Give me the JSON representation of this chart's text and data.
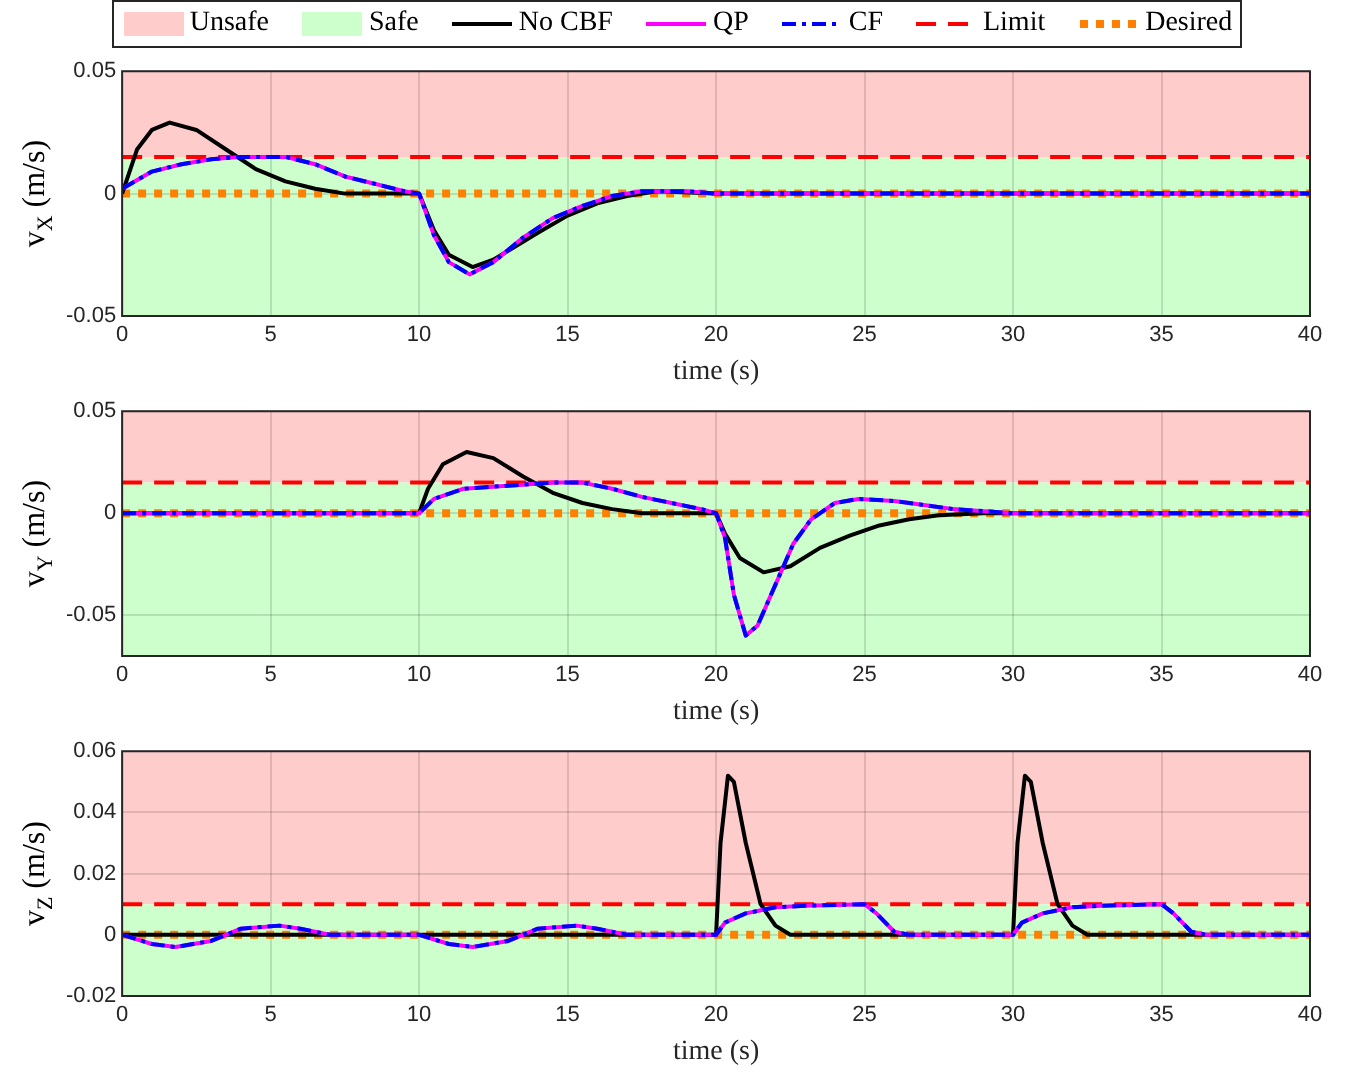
{
  "chart_data": [
    {
      "type": "line",
      "xlabel": "time (s)",
      "ylabel": "v$_{X}$ (m/s)",
      "xlim": [
        0,
        40
      ],
      "xticks": [
        0,
        5,
        10,
        15,
        20,
        25,
        30,
        35,
        40
      ],
      "ylim": [
        -0.05,
        0.05
      ],
      "yticks": [
        -0.05,
        0,
        0.05
      ],
      "grid": true,
      "legend": "top",
      "bands": [
        {
          "axis": "y",
          "from": 0.015,
          "to": 0.05,
          "label": "Unsafe",
          "color": "#ffcccc"
        },
        {
          "axis": "y",
          "from": -0.05,
          "to": 0.015,
          "label": "Safe",
          "color": "#ccffcc"
        }
      ],
      "ref_lines": [
        {
          "axis": "y",
          "value": 0.015,
          "label": "Limit",
          "color": "#ff0000",
          "line_style": "dashed"
        },
        {
          "axis": "y",
          "value": 0,
          "label": "Desired",
          "color": "#ff8000",
          "line_style": "dotted"
        }
      ],
      "series": [
        {
          "name": "No CBF",
          "color": "#000000",
          "x": [
            0,
            0.5,
            1,
            1.6,
            2.5,
            3.5,
            4.5,
            5.5,
            6.5,
            7.5,
            10,
            10.5,
            11,
            11.8,
            12.5,
            14,
            15,
            16,
            17,
            18,
            20,
            40
          ],
          "values": [
            0,
            0.018,
            0.026,
            0.029,
            0.026,
            0.018,
            0.01,
            0.005,
            0.002,
            0,
            0,
            -0.015,
            -0.025,
            -0.03,
            -0.027,
            -0.016,
            -0.009,
            -0.004,
            -0.001,
            0.001,
            0,
            0
          ]
        },
        {
          "name": "QP",
          "color": "#ff00ff",
          "x": [
            0,
            1,
            2,
            3,
            4,
            5.5,
            6.5,
            7.5,
            8.5,
            9.5,
            10,
            10.5,
            11,
            11.7,
            12.5,
            13.5,
            14.5,
            15.5,
            16.5,
            17.5,
            19,
            20,
            40
          ],
          "values": [
            0.002,
            0.009,
            0.012,
            0.014,
            0.015,
            0.015,
            0.012,
            0.007,
            0.004,
            0.001,
            0,
            -0.017,
            -0.028,
            -0.033,
            -0.028,
            -0.018,
            -0.01,
            -0.005,
            -0.001,
            0.001,
            0.001,
            0,
            0
          ]
        },
        {
          "name": "CF",
          "color": "#0000ff",
          "line_style": "dashed",
          "x": [
            0,
            1,
            2,
            3,
            4,
            5.5,
            6.5,
            7.5,
            8.5,
            9.5,
            10,
            10.5,
            11,
            11.7,
            12.5,
            13.5,
            14.5,
            15.5,
            16.5,
            17.5,
            19,
            20,
            40
          ],
          "values": [
            0.002,
            0.009,
            0.012,
            0.014,
            0.015,
            0.015,
            0.012,
            0.007,
            0.004,
            0.001,
            0,
            -0.017,
            -0.028,
            -0.033,
            -0.028,
            -0.018,
            -0.01,
            -0.005,
            -0.001,
            0.001,
            0.001,
            0,
            0
          ]
        }
      ]
    },
    {
      "type": "line",
      "xlabel": "time (s)",
      "ylabel": "v$_{Y}$ (m/s)",
      "xlim": [
        0,
        40
      ],
      "xticks": [
        0,
        5,
        10,
        15,
        20,
        25,
        30,
        35,
        40
      ],
      "ylim": [
        -0.07,
        0.05
      ],
      "yticks": [
        -0.05,
        0,
        0.05
      ],
      "grid": true,
      "bands": [
        {
          "axis": "y",
          "from": 0.015,
          "to": 0.05,
          "color": "#ffcccc"
        },
        {
          "axis": "y",
          "from": -0.07,
          "to": 0.015,
          "color": "#ccffcc"
        }
      ],
      "ref_lines": [
        {
          "axis": "y",
          "value": 0.015,
          "color": "#ff0000",
          "line_style": "dashed"
        },
        {
          "axis": "y",
          "value": 0,
          "color": "#ff8000",
          "line_style": "dotted"
        }
      ],
      "series": [
        {
          "color": "#000000",
          "x": [
            0,
            10,
            10.3,
            10.8,
            11.6,
            12.5,
            13.5,
            14.5,
            15.5,
            16.5,
            17.5,
            20,
            20.3,
            20.8,
            21.6,
            22.5,
            23.5,
            24.5,
            25.5,
            26.5,
            27.5,
            29,
            40
          ],
          "values": [
            0,
            0,
            0.012,
            0.024,
            0.03,
            0.027,
            0.018,
            0.01,
            0.005,
            0.002,
            0,
            0,
            -0.01,
            -0.022,
            -0.029,
            -0.026,
            -0.017,
            -0.011,
            -0.006,
            -0.003,
            -0.001,
            0,
            0
          ]
        },
        {
          "color": "#ff00ff",
          "x": [
            0,
            10,
            10.5,
            11.5,
            12.5,
            13.5,
            14.5,
            15.5,
            16.5,
            17.5,
            18.5,
            19.5,
            20,
            20.3,
            20.6,
            21,
            21.4,
            22,
            22.6,
            23.2,
            24,
            24.8,
            26,
            27,
            28,
            29,
            30,
            40
          ],
          "values": [
            0,
            0,
            0.007,
            0.012,
            0.013,
            0.014,
            0.015,
            0.015,
            0.012,
            0.008,
            0.005,
            0.002,
            0,
            -0.012,
            -0.04,
            -0.06,
            -0.055,
            -0.035,
            -0.015,
            -0.003,
            0.005,
            0.007,
            0.006,
            0.004,
            0.002,
            0.001,
            0,
            0
          ]
        },
        {
          "color": "#0000ff",
          "line_style": "dashed",
          "x": [
            0,
            10,
            10.5,
            11.5,
            12.5,
            13.5,
            14.5,
            15.5,
            16.5,
            17.5,
            18.5,
            19.5,
            20,
            20.3,
            20.6,
            21,
            21.4,
            22,
            22.6,
            23.2,
            24,
            24.8,
            26,
            27,
            28,
            29,
            30,
            40
          ],
          "values": [
            0,
            0,
            0.007,
            0.012,
            0.013,
            0.014,
            0.015,
            0.015,
            0.012,
            0.008,
            0.005,
            0.002,
            0,
            -0.012,
            -0.04,
            -0.06,
            -0.055,
            -0.035,
            -0.015,
            -0.003,
            0.005,
            0.007,
            0.006,
            0.004,
            0.002,
            0.001,
            0,
            0
          ]
        }
      ]
    },
    {
      "type": "line",
      "xlabel": "time (s)",
      "ylabel": "v$_{Z}$ (m/s)",
      "xlim": [
        0,
        40
      ],
      "xticks": [
        0,
        5,
        10,
        15,
        20,
        25,
        30,
        35,
        40
      ],
      "ylim": [
        -0.02,
        0.06
      ],
      "yticks": [
        -0.02,
        0,
        0.02,
        0.04,
        0.06
      ],
      "grid": true,
      "bands": [
        {
          "axis": "y",
          "from": 0.01,
          "to": 0.06,
          "color": "#ffcccc"
        },
        {
          "axis": "y",
          "from": -0.02,
          "to": 0.01,
          "color": "#ccffcc"
        }
      ],
      "ref_lines": [
        {
          "axis": "y",
          "value": 0.01,
          "color": "#ff0000",
          "line_style": "dashed"
        },
        {
          "axis": "y",
          "value": 0,
          "color": "#ff8000",
          "line_style": "dotted"
        }
      ],
      "series": [
        {
          "color": "#000000",
          "x": [
            0,
            20,
            20.15,
            20.4,
            20.6,
            21,
            21.5,
            22,
            22.5,
            30,
            30.15,
            30.4,
            30.6,
            31,
            31.5,
            32,
            32.5,
            40
          ],
          "values": [
            0,
            0,
            0.03,
            0.052,
            0.05,
            0.03,
            0.01,
            0.003,
            0,
            0,
            0.03,
            0.052,
            0.05,
            0.03,
            0.01,
            0.003,
            0,
            0
          ]
        },
        {
          "color": "#ff00ff",
          "x": [
            0,
            1,
            1.8,
            3,
            4,
            5.3,
            6,
            7,
            10,
            11,
            11.8,
            13,
            14,
            15.3,
            16,
            17,
            20,
            20.3,
            21,
            22,
            23,
            25,
            25.4,
            26,
            26.5,
            30,
            30.3,
            31,
            32,
            33,
            35,
            35.4,
            36,
            36.5,
            40
          ],
          "values": [
            0,
            -0.003,
            -0.004,
            -0.002,
            0.002,
            0.003,
            0.002,
            0,
            0,
            -0.003,
            -0.004,
            -0.002,
            0.002,
            0.003,
            0.002,
            0,
            0,
            0.004,
            0.007,
            0.009,
            0.0095,
            0.01,
            0.007,
            0.001,
            0,
            0,
            0.004,
            0.007,
            0.009,
            0.0095,
            0.01,
            0.007,
            0.001,
            0,
            0
          ]
        },
        {
          "color": "#0000ff",
          "line_style": "dashed",
          "x": [
            0,
            1,
            1.8,
            3,
            4,
            5.3,
            6,
            7,
            10,
            11,
            11.8,
            13,
            14,
            15.3,
            16,
            17,
            20,
            20.3,
            21,
            22,
            23,
            25,
            25.4,
            26,
            26.5,
            30,
            30.3,
            31,
            32,
            33,
            35,
            35.4,
            36,
            36.5,
            40
          ],
          "values": [
            0,
            -0.003,
            -0.004,
            -0.002,
            0.002,
            0.003,
            0.002,
            0,
            0,
            -0.003,
            -0.004,
            -0.002,
            0.002,
            0.003,
            0.002,
            0,
            0,
            0.004,
            0.007,
            0.009,
            0.0095,
            0.01,
            0.007,
            0.001,
            0,
            0,
            0.004,
            0.007,
            0.009,
            0.0095,
            0.01,
            0.007,
            0.001,
            0,
            0
          ]
        }
      ]
    }
  ]
}
